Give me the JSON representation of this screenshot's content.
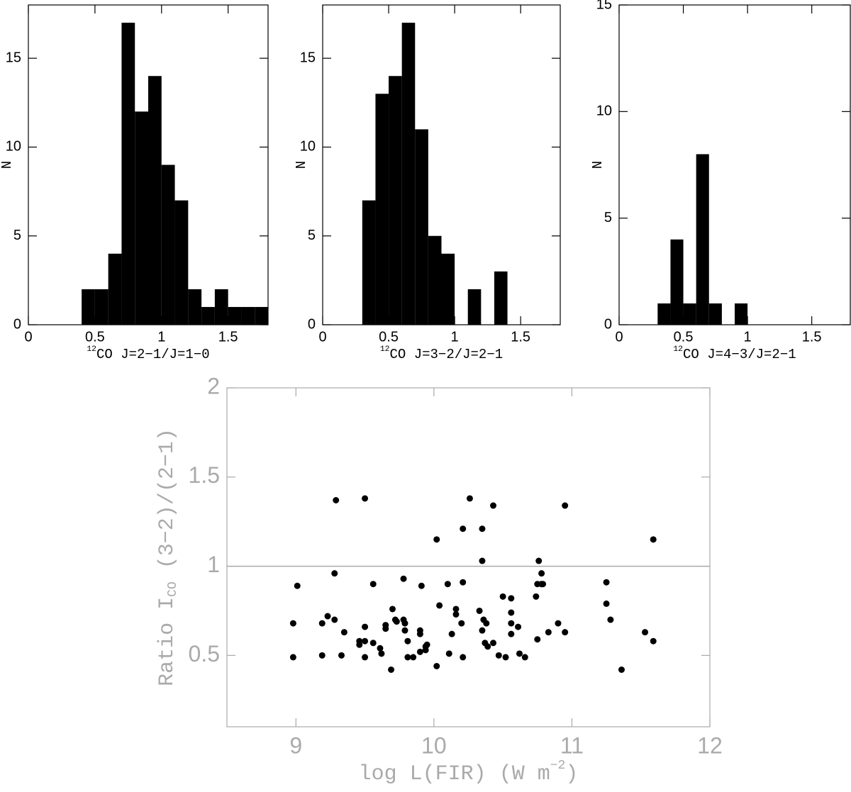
{
  "chart_data": [
    {
      "type": "histogram",
      "bins": [
        0.4,
        0.5,
        0.6,
        0.7,
        0.8,
        0.9,
        1.0,
        1.1,
        1.2,
        1.3,
        1.4,
        1.5,
        1.6,
        1.7,
        1.8
      ],
      "values": [
        2,
        2,
        4,
        17,
        12,
        14,
        9,
        7,
        2,
        1,
        2,
        1,
        1,
        1
      ],
      "color": "#000000",
      "xlim": [
        0,
        1.8
      ],
      "xticks": [
        0,
        0.5,
        1,
        1.5
      ],
      "ylim": [
        0,
        18
      ],
      "yticks": [
        0,
        5,
        10,
        15
      ],
      "ylabel": "N",
      "xlabel": [
        "12",
        "CO J=2−1/J=1−0"
      ]
    },
    {
      "type": "histogram",
      "bins": [
        0.3,
        0.4,
        0.5,
        0.6,
        0.7,
        0.8,
        0.9,
        1.0,
        1.1,
        1.2,
        1.3,
        1.4
      ],
      "values": [
        7,
        13,
        14,
        17,
        11,
        5,
        4,
        0,
        2,
        0,
        3
      ],
      "color": "#000000",
      "xlim": [
        0,
        1.8
      ],
      "xticks": [
        0,
        0.5,
        1,
        1.5
      ],
      "ylim": [
        0,
        18
      ],
      "yticks": [
        0,
        5,
        10,
        15
      ],
      "ylabel": "N",
      "xlabel": [
        "12",
        "CO J=3−2/J=2−1"
      ]
    },
    {
      "type": "histogram",
      "bins": [
        0.3,
        0.4,
        0.5,
        0.6,
        0.7,
        0.8,
        0.9,
        1.0
      ],
      "values": [
        1,
        4,
        1,
        8,
        1,
        0,
        1
      ],
      "color": "#000000",
      "xlim": [
        0,
        1.8
      ],
      "xticks": [
        0,
        0.5,
        1,
        1.5
      ],
      "ylim": [
        0,
        15
      ],
      "yticks": [
        0,
        5,
        10,
        15
      ],
      "ylabel": "N",
      "xlabel": [
        "12",
        "CO J=4−3/J=2−1"
      ]
    },
    {
      "type": "scatter",
      "color": "#000000",
      "axis_color": "#aaaaaa",
      "hline": 1,
      "xlim": [
        8.5,
        12
      ],
      "xticks": [
        9,
        10,
        11,
        12
      ],
      "ylim": [
        0.1,
        2
      ],
      "yticks": [
        0.5,
        1,
        1.5,
        2
      ],
      "xlabel": [
        "log L(FIR)  (W m",
        "−2",
        ")"
      ],
      "ylabel": [
        "Ratio I",
        "CO",
        " (3−2)/(2−1)"
      ],
      "x": [
        8.98,
        9.01,
        8.98,
        9.19,
        9.19,
        9.23,
        9.28,
        9.28,
        9.33,
        9.35,
        9.29,
        9.5,
        9.46,
        9.46,
        9.5,
        9.5,
        9.5,
        9.56,
        9.56,
        9.61,
        9.62,
        9.65,
        9.65,
        9.69,
        9.7,
        9.72,
        9.73,
        9.78,
        9.78,
        9.79,
        9.79,
        9.81,
        9.81,
        9.85,
        9.9,
        9.9,
        9.9,
        9.91,
        9.94,
        9.94,
        9.95,
        10.02,
        10.02,
        10.04,
        10.1,
        10.11,
        10.13,
        10.16,
        10.16,
        10.2,
        10.21,
        10.21,
        10.21,
        10.26,
        10.35,
        10.35,
        10.33,
        10.35,
        10.36,
        10.37,
        10.38,
        10.39,
        10.43,
        10.43,
        10.47,
        10.5,
        10.52,
        10.56,
        10.56,
        10.56,
        10.56,
        10.61,
        10.62,
        10.66,
        10.74,
        10.75,
        10.75,
        10.76,
        10.78,
        10.78,
        10.79,
        10.83,
        10.95,
        10.9,
        10.95,
        11.25,
        11.25,
        11.28,
        11.36,
        11.53,
        11.59,
        11.59
      ],
      "values": [
        0.68,
        0.89,
        0.49,
        0.68,
        0.5,
        0.72,
        0.96,
        0.7,
        0.5,
        0.63,
        1.37,
        1.38,
        0.58,
        0.56,
        0.66,
        0.49,
        0.58,
        0.9,
        0.57,
        0.54,
        0.51,
        0.67,
        0.65,
        0.42,
        0.76,
        0.7,
        0.69,
        0.93,
        0.7,
        0.68,
        0.64,
        0.58,
        0.49,
        0.49,
        0.52,
        0.62,
        0.64,
        0.89,
        0.55,
        0.53,
        0.56,
        0.44,
        1.15,
        0.78,
        0.9,
        0.51,
        0.62,
        0.76,
        0.73,
        0.68,
        0.49,
        0.91,
        1.21,
        1.38,
        1.21,
        1.03,
        0.75,
        0.64,
        0.7,
        0.57,
        0.68,
        0.55,
        1.34,
        0.57,
        0.5,
        0.83,
        0.49,
        0.82,
        0.74,
        0.68,
        0.62,
        0.66,
        0.51,
        0.49,
        0.83,
        0.59,
        0.9,
        1.03,
        0.96,
        0.9,
        0.9,
        0.63,
        1.34,
        0.68,
        0.63,
        0.91,
        0.79,
        0.7,
        0.42,
        0.63,
        1.15,
        0.58
      ]
    }
  ]
}
